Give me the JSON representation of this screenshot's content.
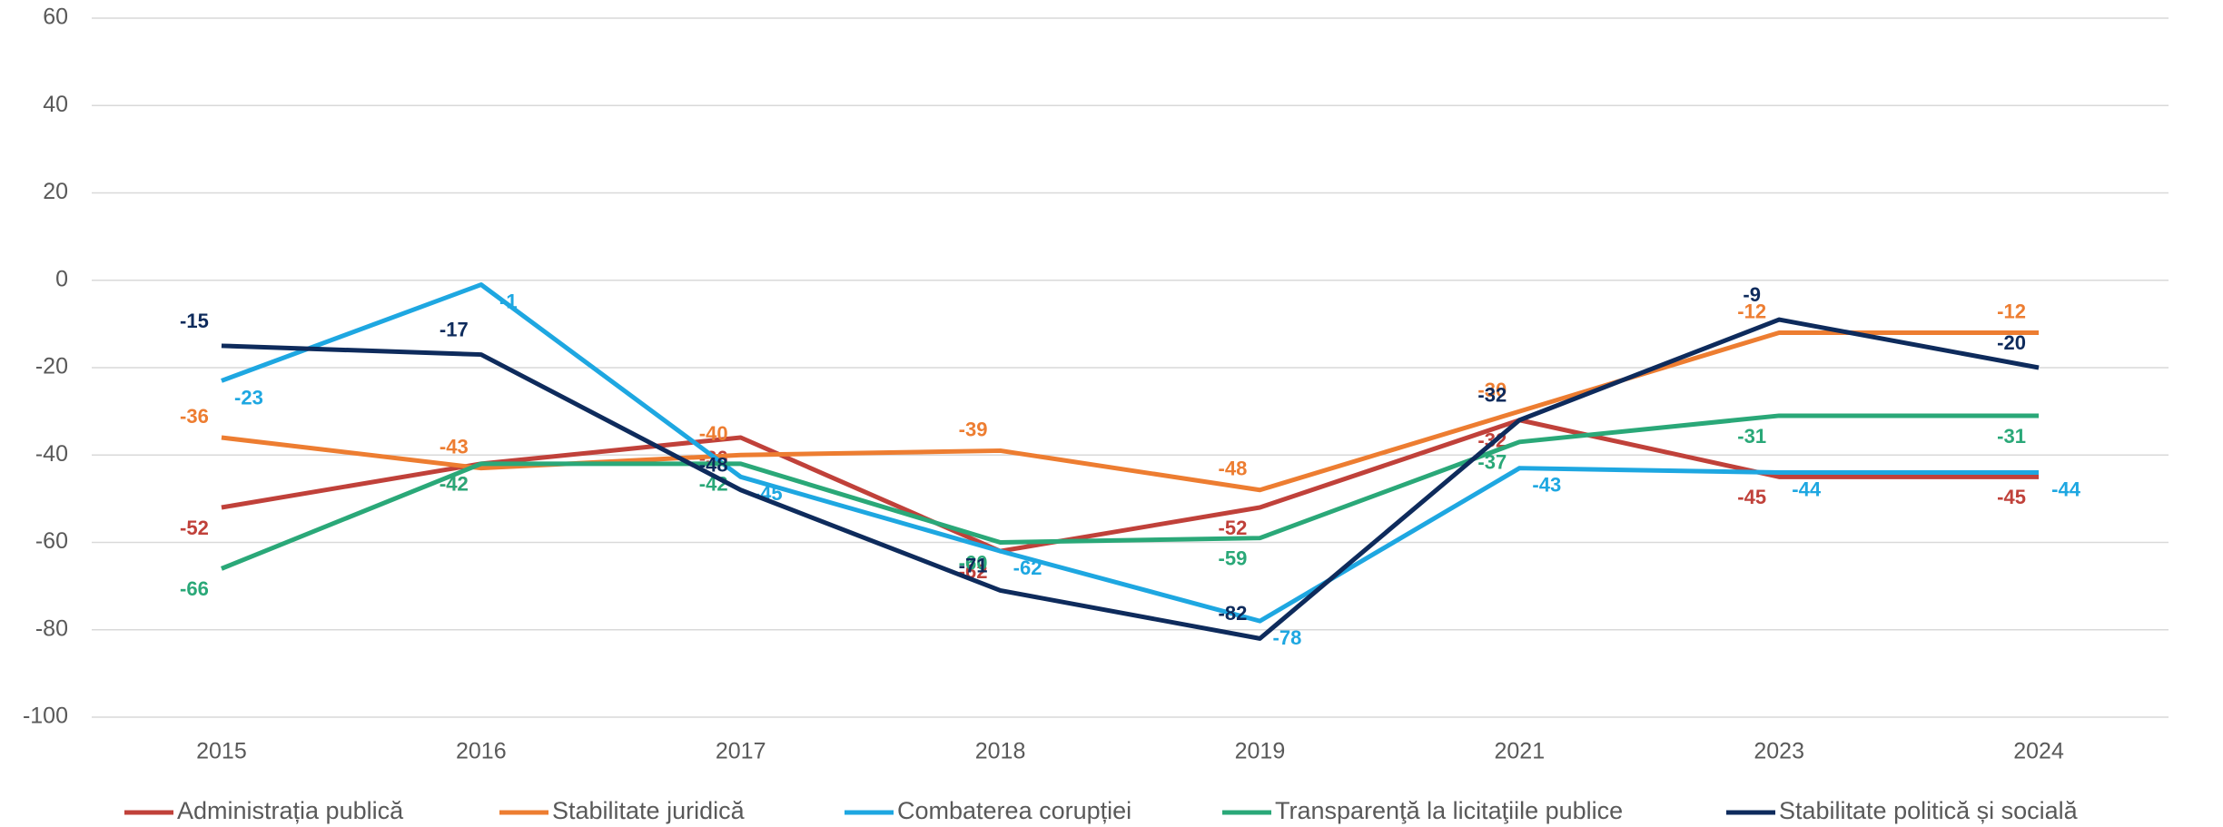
{
  "chart_data": {
    "type": "line",
    "categories": [
      "2015",
      "2016",
      "2017",
      "2018",
      "2019",
      "2021",
      "2023",
      "2024"
    ],
    "series": [
      {
        "name": "Administrația publică",
        "color": "#c0413a",
        "values": [
          -52,
          -42,
          -36,
          -62,
          -52,
          -32,
          -45,
          -45
        ]
      },
      {
        "name": "Stabilitate juridică",
        "color": "#ed7d31",
        "values": [
          -36,
          -43,
          -40,
          -39,
          -48,
          -30,
          -12,
          -12
        ]
      },
      {
        "name": "Combaterea corupției",
        "color": "#1ea7e1",
        "values": [
          -23,
          -1,
          -45,
          -62,
          -78,
          -43,
          -44,
          -44
        ]
      },
      {
        "name": "Transparenţă la licitaţiile publice",
        "color": "#2aa878",
        "values": [
          -66,
          -42,
          -42,
          -60,
          -59,
          -37,
          -31,
          -31
        ]
      },
      {
        "name": "Stabilitate politică și socială",
        "color": "#0e2b5c",
        "values": [
          -15,
          -17,
          -48,
          -71,
          -82,
          -32,
          -9,
          -20
        ]
      }
    ],
    "ylim": [
      -100,
      60
    ],
    "yticks": [
      -100,
      -80,
      -60,
      -40,
      -20,
      0,
      20,
      40,
      60
    ],
    "grid": true,
    "legend": "bottom"
  }
}
